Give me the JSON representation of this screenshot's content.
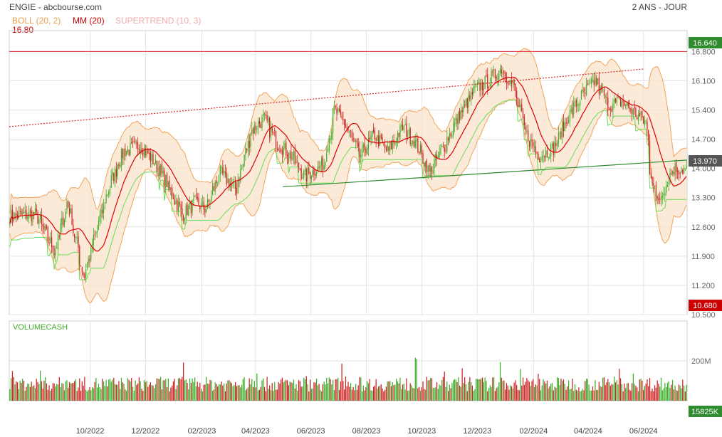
{
  "header": {
    "title": "ENGIE - abcbourse.com",
    "period": "2 ANS - JOUR"
  },
  "legend": {
    "boll": "BOLL (20, 2)",
    "mm": "MM (20)",
    "supertrend": "SUPERTREND (10, 3)",
    "level_label": "16.80"
  },
  "colors": {
    "up": "#3fae29",
    "down": "#cc2222",
    "ma": "#dd0000",
    "band": "#f2a45a",
    "band_fill": "#fbe3cc",
    "supertrend": "#66dd55",
    "trend_green": "#2e8b2e",
    "trend_red": "#d62828",
    "grid": "#e3e3e3",
    "axis_text": "#666666"
  },
  "badges": {
    "last_price": "13.970",
    "high_level": "16.640",
    "low_level": "10.680",
    "last_volume": "15825K"
  },
  "chart_data": [
    {
      "type": "candlestick",
      "title": "ENGIE - abcbourse.com",
      "y_ticks": [
        "16.800",
        "16.100",
        "15.400",
        "14.700",
        "14.000",
        "13.300",
        "12.600",
        "11.900",
        "11.200",
        "10.500"
      ],
      "ylim": [
        10.5,
        17.3
      ],
      "x_tick_labels": [
        "10/2022",
        "12/2022",
        "02/2023",
        "04/2023",
        "06/2023",
        "08/2023",
        "10/2023",
        "12/2023",
        "02/2024",
        "04/2024",
        "06/2024"
      ],
      "x_tick_dates": [
        "2022-10-01",
        "2022-12-01",
        "2023-02-01",
        "2023-04-01",
        "2023-06-01",
        "2023-08-01",
        "2023-10-01",
        "2023-12-01",
        "2024-02-01",
        "2024-04-01",
        "2024-06-01"
      ],
      "xlim": [
        "2022-07-04",
        "2024-07-19"
      ],
      "close_path": [
        [
          "2022-07-04",
          12.85
        ],
        [
          "2022-08-01",
          12.9
        ],
        [
          "2022-08-22",
          12.0
        ],
        [
          "2022-09-05",
          13.2
        ],
        [
          "2022-09-23",
          11.4
        ],
        [
          "2022-10-03",
          12.2
        ],
        [
          "2022-10-20",
          13.5
        ],
        [
          "2022-11-05",
          14.4
        ],
        [
          "2022-11-25",
          14.55
        ],
        [
          "2022-12-15",
          14.0
        ],
        [
          "2023-01-10",
          12.9
        ],
        [
          "2023-01-25",
          13.2
        ],
        [
          "2023-02-05",
          13.0
        ],
        [
          "2023-02-20",
          13.9
        ],
        [
          "2023-03-10",
          13.5
        ],
        [
          "2023-03-27",
          14.9
        ],
        [
          "2023-04-10",
          15.2
        ],
        [
          "2023-04-25",
          14.6
        ],
        [
          "2023-05-10",
          14.3
        ],
        [
          "2023-05-25",
          13.8
        ],
        [
          "2023-06-15",
          14.1
        ],
        [
          "2023-06-27",
          15.4
        ],
        [
          "2023-07-10",
          15.0
        ],
        [
          "2023-07-25",
          14.3
        ],
        [
          "2023-08-10",
          14.8
        ],
        [
          "2023-08-25",
          14.4
        ],
        [
          "2023-09-10",
          15.0
        ],
        [
          "2023-09-25",
          14.6
        ],
        [
          "2023-10-10",
          13.9
        ],
        [
          "2023-10-25",
          14.5
        ],
        [
          "2023-11-10",
          15.2
        ],
        [
          "2023-11-30",
          15.9
        ],
        [
          "2023-12-15",
          16.1
        ],
        [
          "2023-12-28",
          16.4
        ],
        [
          "2024-01-10",
          16.0
        ],
        [
          "2024-01-25",
          14.8
        ],
        [
          "2024-02-08",
          14.3
        ],
        [
          "2024-02-25",
          14.5
        ],
        [
          "2024-03-10",
          15.2
        ],
        [
          "2024-03-25",
          15.7
        ],
        [
          "2024-04-10",
          16.1
        ],
        [
          "2024-04-25",
          15.5
        ],
        [
          "2024-05-10",
          15.6
        ],
        [
          "2024-05-25",
          15.3
        ],
        [
          "2024-06-05",
          15.1
        ],
        [
          "2024-06-10",
          14.0
        ],
        [
          "2024-06-17",
          13.2
        ],
        [
          "2024-06-27",
          13.6
        ],
        [
          "2024-07-05",
          14.0
        ],
        [
          "2024-07-19",
          13.97
        ]
      ],
      "trendlines": [
        {
          "kind": "support",
          "style": "solid",
          "from": [
            "2023-05-01",
            13.56
          ],
          "to": [
            "2024-07-19",
            14.2
          ]
        },
        {
          "kind": "resistance",
          "style": "dotted",
          "from": [
            "2022-07-04",
            15.0
          ],
          "to": [
            "2024-06-01",
            16.38
          ]
        }
      ],
      "horizontal_level": 16.8,
      "indicators": [
        "BOLL (20, 2)",
        "MM (20)",
        "SUPERTREND (10, 3)"
      ]
    },
    {
      "type": "bar",
      "title": "VOLUMECASH",
      "y_ticks": [
        "200M"
      ],
      "last_value": "15825K"
    }
  ]
}
